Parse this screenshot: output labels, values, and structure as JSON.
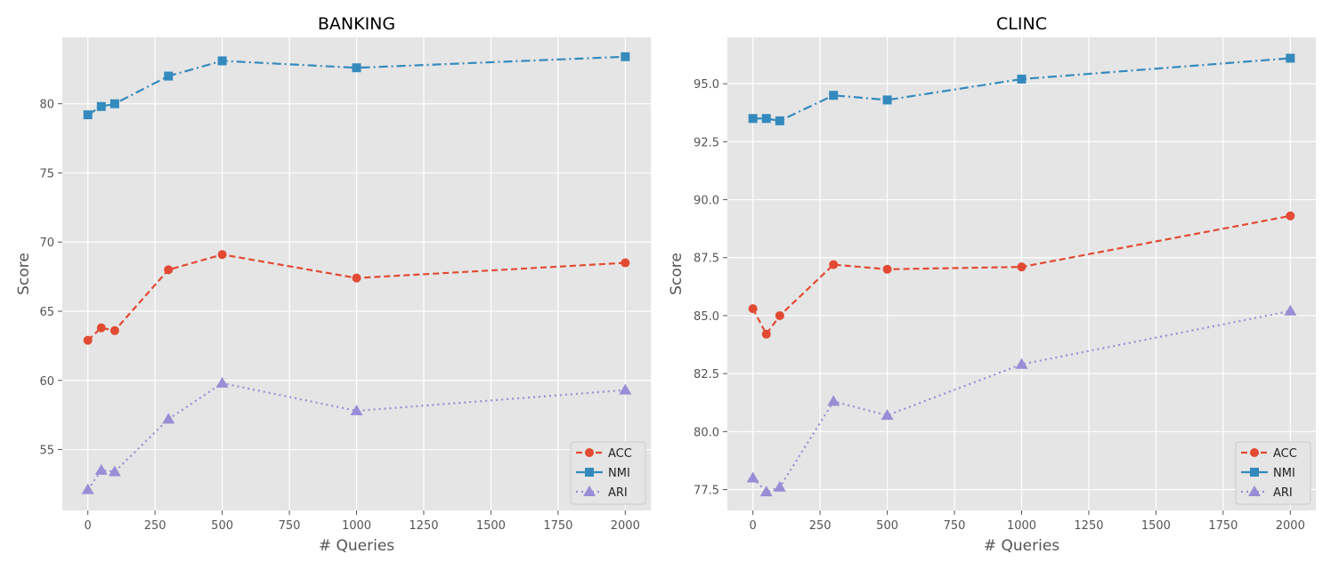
{
  "chart_data": [
    {
      "type": "line",
      "title": "BANKING",
      "xlabel": "# Queries",
      "ylabel": "Score",
      "x": [
        0,
        50,
        100,
        300,
        500,
        1000,
        2000
      ],
      "xlim": [
        -95,
        2095
      ],
      "ylim": [
        50.6,
        84.8
      ],
      "xticks": [
        0,
        250,
        500,
        750,
        1000,
        1250,
        1500,
        1750,
        2000
      ],
      "yticks": [
        55,
        60,
        65,
        70,
        75,
        80
      ],
      "ytick_labels": [
        "55",
        "60",
        "65",
        "70",
        "75",
        "80"
      ],
      "legend_position": "lower-right",
      "grid": true,
      "series": [
        {
          "name": "ACC",
          "color": "#e24a33",
          "marker": "circle",
          "dash": "dashed",
          "values": [
            62.9,
            63.8,
            63.6,
            68.0,
            69.1,
            67.4,
            68.5
          ]
        },
        {
          "name": "NMI",
          "color": "#348abd",
          "marker": "square",
          "dash": "dashdot",
          "values": [
            79.2,
            79.8,
            80.0,
            82.0,
            83.1,
            82.6,
            83.4
          ]
        },
        {
          "name": "ARI",
          "color": "#988ed5",
          "marker": "triangle",
          "dash": "dotted",
          "values": [
            52.1,
            53.5,
            53.4,
            57.2,
            59.8,
            57.8,
            59.3
          ]
        }
      ]
    },
    {
      "type": "line",
      "title": "CLINC",
      "xlabel": "# Queries",
      "ylabel": "Score",
      "x": [
        0,
        50,
        100,
        300,
        500,
        1000,
        2000
      ],
      "xlim": [
        -95,
        2095
      ],
      "ylim": [
        76.6,
        97.0
      ],
      "xticks": [
        0,
        250,
        500,
        750,
        1000,
        1250,
        1500,
        1750,
        2000
      ],
      "yticks": [
        77.5,
        80.0,
        82.5,
        85.0,
        87.5,
        90.0,
        92.5,
        95.0
      ],
      "ytick_labels": [
        "77.5",
        "80.0",
        "82.5",
        "85.0",
        "87.5",
        "90.0",
        "92.5",
        "95.0"
      ],
      "legend_position": "lower-right",
      "grid": true,
      "series": [
        {
          "name": "ACC",
          "color": "#e24a33",
          "marker": "circle",
          "dash": "dashed",
          "values": [
            85.3,
            84.2,
            85.0,
            87.2,
            87.0,
            87.1,
            89.3
          ]
        },
        {
          "name": "NMI",
          "color": "#348abd",
          "marker": "square",
          "dash": "dashdot",
          "values": [
            93.5,
            93.5,
            93.4,
            94.5,
            94.3,
            95.2,
            96.1
          ]
        },
        {
          "name": "ARI",
          "color": "#988ed5",
          "marker": "triangle",
          "dash": "dotted",
          "values": [
            78.0,
            77.4,
            77.6,
            81.3,
            80.7,
            82.9,
            85.2
          ]
        }
      ]
    }
  ]
}
